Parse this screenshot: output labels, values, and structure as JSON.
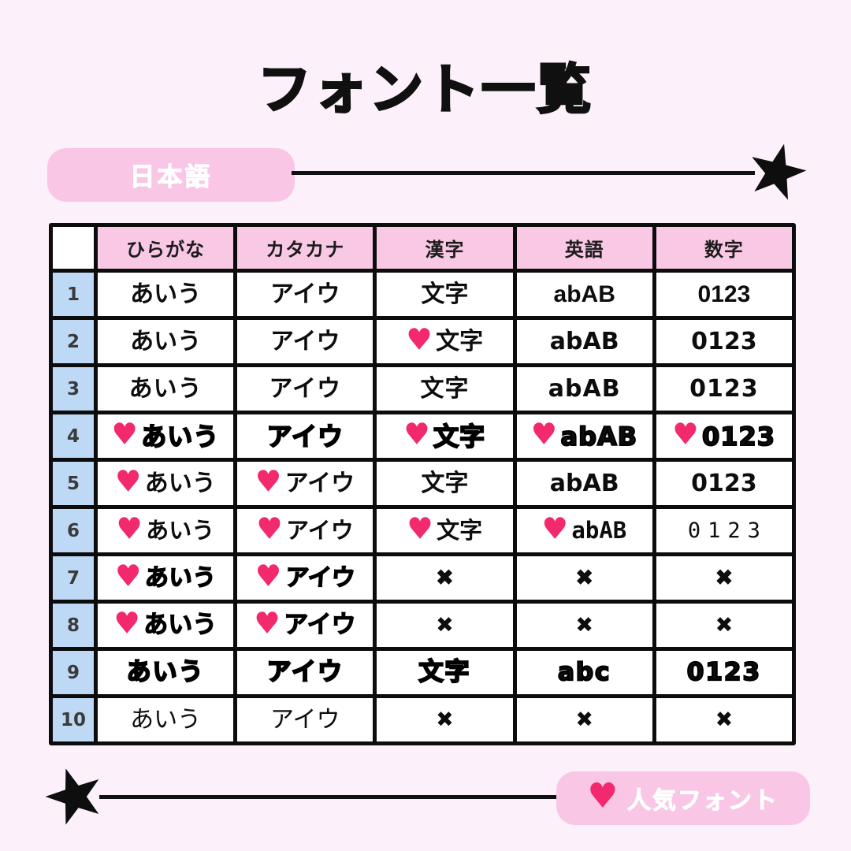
{
  "title": "フォント一覧",
  "banner": {
    "label": "日本語"
  },
  "legend": {
    "label": "人気フォント"
  },
  "icons": {
    "heart_glyph": "♥",
    "star": "black-five-point-star"
  },
  "colors": {
    "background": "#fcf1fa",
    "pill_pink": "#f9c6e6",
    "header_pink": "#f9c8e5",
    "row_number_blue": "#bed9f5",
    "heart_pink": "#f2296e",
    "line_black": "#101010"
  },
  "table": {
    "headers": [
      "ひらがな",
      "カタカナ",
      "漢字",
      "英語",
      "数字"
    ],
    "rows": [
      {
        "num": "1",
        "font_style": "gothic",
        "cells": [
          {
            "text": "あいう",
            "heart": false
          },
          {
            "text": "アイウ",
            "heart": false
          },
          {
            "text": "文字",
            "heart": false
          },
          {
            "text": "abAB",
            "heart": false
          },
          {
            "text": "0123",
            "heart": false
          }
        ]
      },
      {
        "num": "2",
        "font_style": "rounded-bold",
        "cells": [
          {
            "text": "あいう",
            "heart": false
          },
          {
            "text": "アイウ",
            "heart": false
          },
          {
            "text": "文字",
            "heart": true
          },
          {
            "text": "abAB",
            "heart": false
          },
          {
            "text": "0123",
            "heart": false
          }
        ]
      },
      {
        "num": "3",
        "font_style": "pop-bold",
        "cells": [
          {
            "text": "あいう",
            "heart": false
          },
          {
            "text": "アイウ",
            "heart": false
          },
          {
            "text": "文字",
            "heart": false
          },
          {
            "text": "abAB",
            "heart": false
          },
          {
            "text": "0123",
            "heart": false
          }
        ]
      },
      {
        "num": "4",
        "font_style": "heavy-pop",
        "cells": [
          {
            "text": "あいう",
            "heart": true
          },
          {
            "text": "アイウ",
            "heart": false
          },
          {
            "text": "文字",
            "heart": true
          },
          {
            "text": "abAB",
            "heart": true
          },
          {
            "text": "0123",
            "heart": true
          }
        ]
      },
      {
        "num": "5",
        "font_style": "rounded",
        "cells": [
          {
            "text": "あいう",
            "heart": true
          },
          {
            "text": "アイウ",
            "heart": true
          },
          {
            "text": "文字",
            "heart": false
          },
          {
            "text": "abAB",
            "heart": false
          },
          {
            "text": "0123",
            "heart": false
          }
        ]
      },
      {
        "num": "6",
        "font_style": "techno",
        "cells": [
          {
            "text": "あいう",
            "heart": true
          },
          {
            "text": "アイウ",
            "heart": true
          },
          {
            "text": "文字",
            "heart": true
          },
          {
            "text": "abAB",
            "heart": true
          },
          {
            "text": "0123",
            "heart": false
          }
        ]
      },
      {
        "num": "7",
        "font_style": "brush-a",
        "cells": [
          {
            "text": "あいう",
            "heart": true
          },
          {
            "text": "アイウ",
            "heart": true
          },
          {
            "text": "✖",
            "heart": false,
            "cross": true
          },
          {
            "text": "✖",
            "heart": false,
            "cross": true
          },
          {
            "text": "✖",
            "heart": false,
            "cross": true
          }
        ]
      },
      {
        "num": "8",
        "font_style": "brush-b",
        "cells": [
          {
            "text": "あいう",
            "heart": true
          },
          {
            "text": "アイウ",
            "heart": true
          },
          {
            "text": "✖",
            "heart": false,
            "cross": true
          },
          {
            "text": "✖",
            "heart": false,
            "cross": true
          },
          {
            "text": "✖",
            "heart": false,
            "cross": true
          }
        ]
      },
      {
        "num": "9",
        "font_style": "block-heavy",
        "cells": [
          {
            "text": "あいう",
            "heart": false
          },
          {
            "text": "アイウ",
            "heart": false
          },
          {
            "text": "文字",
            "heart": false
          },
          {
            "text": "abc",
            "heart": false
          },
          {
            "text": "0123",
            "heart": false
          }
        ]
      },
      {
        "num": "10",
        "font_style": "rounded-light",
        "cells": [
          {
            "text": "あいう",
            "heart": false
          },
          {
            "text": "アイウ",
            "heart": false
          },
          {
            "text": "✖",
            "heart": false,
            "cross": true
          },
          {
            "text": "✖",
            "heart": false,
            "cross": true
          },
          {
            "text": "✖",
            "heart": false,
            "cross": true
          }
        ]
      }
    ]
  }
}
